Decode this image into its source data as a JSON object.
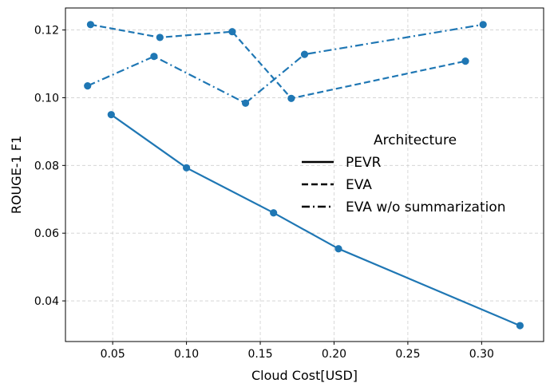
{
  "chart_data": {
    "type": "line",
    "title": "",
    "xlabel": "Cloud Cost[USD]",
    "ylabel": "ROUGE-1 F1",
    "xlim": [
      0.018,
      0.342
    ],
    "ylim": [
      0.028,
      0.1265
    ],
    "xticks": [
      0.05,
      0.1,
      0.15,
      0.2,
      0.25,
      0.3
    ],
    "xtick_labels": [
      "0.05",
      "0.10",
      "0.15",
      "0.20",
      "0.25",
      "0.30"
    ],
    "yticks": [
      0.04,
      0.06,
      0.08,
      0.1,
      0.12
    ],
    "ytick_labels": [
      "0.04",
      "0.06",
      "0.08",
      "0.10",
      "0.12"
    ],
    "grid": true,
    "legend": {
      "title": "Architecture",
      "placement": "center-right"
    },
    "color": "#1f77b4",
    "series": [
      {
        "name": "PEVR",
        "style": "solid",
        "points": [
          [
            0.049,
            0.095
          ],
          [
            0.1,
            0.0793
          ],
          [
            0.159,
            0.066
          ],
          [
            0.203,
            0.0554
          ],
          [
            0.326,
            0.0327
          ]
        ]
      },
      {
        "name": "EVA",
        "style": "dashed",
        "points": [
          [
            0.035,
            0.1216
          ],
          [
            0.082,
            0.1178
          ],
          [
            0.131,
            0.1195
          ],
          [
            0.171,
            0.0998
          ],
          [
            0.289,
            0.1108
          ]
        ]
      },
      {
        "name": "EVA w/o summarization",
        "style": "dashdot",
        "points": [
          [
            0.033,
            0.1035
          ],
          [
            0.078,
            0.1122
          ],
          [
            0.14,
            0.0984
          ],
          [
            0.18,
            0.1128
          ],
          [
            0.301,
            0.1216
          ]
        ]
      }
    ]
  }
}
